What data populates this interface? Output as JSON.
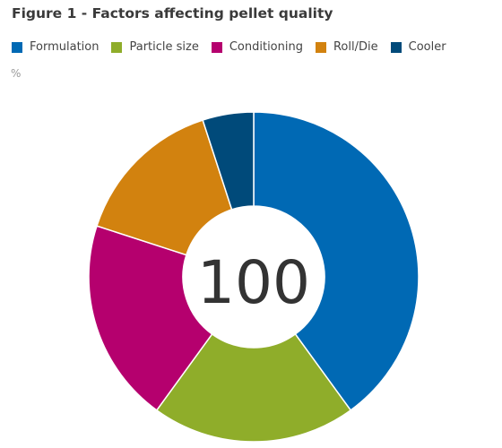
{
  "chart_data": {
    "type": "pie",
    "title": "Figure 1 - Factors affecting pellet quality",
    "unit": "%",
    "center_label": "100",
    "legend_position": "top",
    "categories": [
      "Formulation",
      "Particle size",
      "Conditioning",
      "Roll/Die",
      "Cooler"
    ],
    "values": [
      40,
      20,
      20,
      15,
      5
    ],
    "colors": [
      "#0069b4",
      "#8fad2a",
      "#b5006e",
      "#d2820f",
      "#004a7a"
    ]
  }
}
